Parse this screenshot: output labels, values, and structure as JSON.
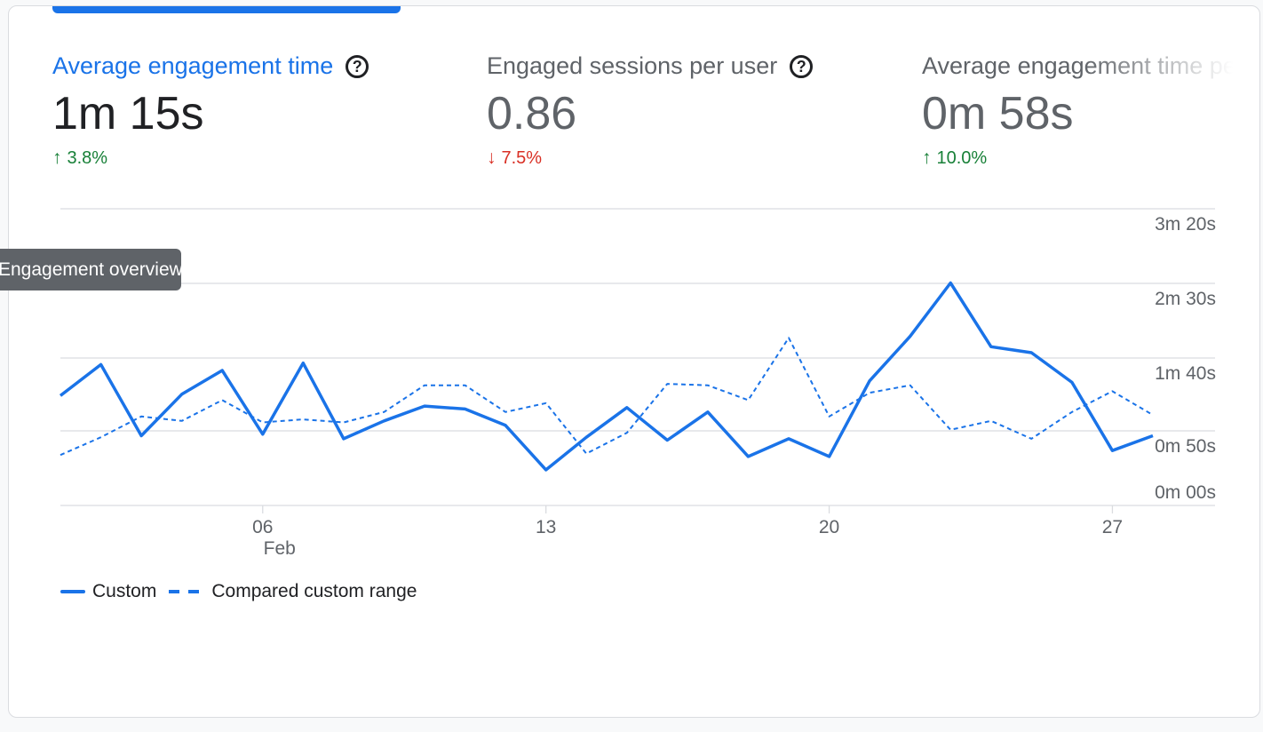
{
  "metrics": [
    {
      "title": "Average engagement time",
      "value": "1m 15s",
      "delta": "3.8%",
      "direction": "up",
      "active": true
    },
    {
      "title": "Engaged sessions per user",
      "value": "0.86",
      "delta": "7.5%",
      "direction": "down",
      "active": false
    },
    {
      "title": "Average engagement time per session",
      "value": "0m 58s",
      "delta": "10.0%",
      "direction": "up",
      "active": false
    }
  ],
  "help_glyph": "?",
  "arrows": {
    "up": "↑",
    "down": "↓"
  },
  "tooltip": {
    "text": "Engagement overview"
  },
  "legend": {
    "custom": "Custom",
    "compared": "Compared custom range"
  },
  "colors": {
    "accent": "#1a73e8",
    "up": "#188038",
    "down": "#d93025",
    "grid": "#dadce0"
  },
  "chart_data": {
    "type": "line",
    "x_axis": {
      "ticks": [
        {
          "label": "06",
          "sublabel": "Feb",
          "index": 5
        },
        {
          "label": "13",
          "index": 12
        },
        {
          "label": "20",
          "index": 19
        },
        {
          "label": "27",
          "index": 26
        }
      ]
    },
    "y_axis": {
      "ticks": [
        "0m 00s",
        "0m 50s",
        "1m 40s",
        "2m 30s",
        "3m 20s"
      ],
      "ylim_seconds": [
        0,
        200
      ]
    },
    "grid": true,
    "series": [
      {
        "name": "Custom",
        "style": "solid",
        "values_seconds": [
          74,
          95,
          47,
          75,
          91,
          48,
          96,
          45,
          57,
          67,
          65,
          54,
          24,
          46,
          66,
          44,
          63,
          33,
          45,
          33,
          84,
          114,
          150,
          107,
          103,
          83,
          37,
          47
        ]
      },
      {
        "name": "Compared custom range",
        "style": "dashed",
        "values_seconds": [
          34,
          46,
          60,
          57,
          71,
          56,
          58,
          56,
          63,
          81,
          81,
          63,
          69,
          35,
          49,
          82,
          81,
          71,
          113,
          60,
          76,
          81,
          51,
          57,
          45,
          63,
          77,
          61
        ]
      }
    ]
  }
}
